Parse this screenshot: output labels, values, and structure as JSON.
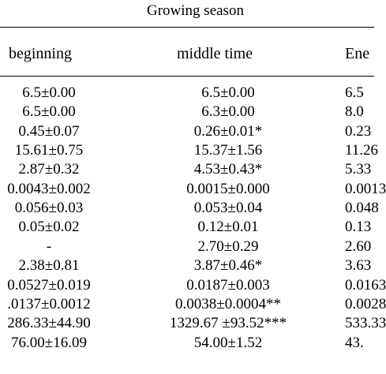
{
  "table": {
    "spanning_header": "Growing season",
    "columns": [
      "beginning",
      "middle time",
      "Ene"
    ],
    "rows": [
      [
        "6.5±0.00",
        "6.5±0.00",
        "6.5"
      ],
      [
        "6.5±0.00",
        "6.3±0.00",
        "8.0"
      ],
      [
        "0.45±0.07",
        "0.26±0.01*",
        "0.23"
      ],
      [
        "15.61±0.75",
        "15.37±1.56",
        "11.26"
      ],
      [
        "2.87±0.32",
        "4.53±0.43*",
        "5.33"
      ],
      [
        "0.0043±0.002",
        "0.0015±0.000",
        "0.0013"
      ],
      [
        "0.056±0.03",
        "0.053±0.04",
        "0.048"
      ],
      [
        "0.05±0.02",
        "0.12±0.01",
        "0.13"
      ],
      [
        "-",
        "2.70±0.29",
        "2.60"
      ],
      [
        "2.38±0.81",
        "3.87±0.46*",
        "3.63"
      ],
      [
        "0.0527±0.019",
        "0.0187±0.003",
        "0.0163"
      ],
      [
        ".0137±0.0012",
        "0.0038±0.0004**",
        "0.0028"
      ],
      [
        "286.33±44.90",
        "1329.67 ±93.52***",
        "533.33"
      ],
      [
        "76.00±16.09",
        "54.00±1.52",
        "43."
      ]
    ]
  }
}
